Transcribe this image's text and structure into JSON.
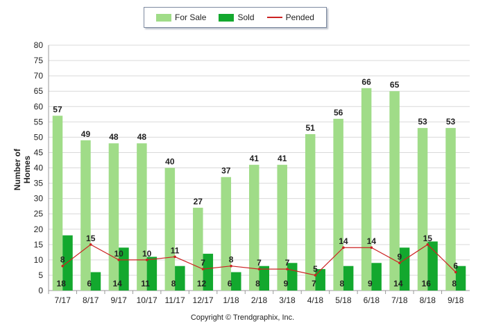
{
  "chart_data": {
    "type": "bar",
    "categories": [
      "7/17",
      "8/17",
      "9/17",
      "10/17",
      "11/17",
      "12/17",
      "1/18",
      "2/18",
      "3/18",
      "4/18",
      "5/18",
      "6/18",
      "7/18",
      "8/18",
      "9/18"
    ],
    "series": [
      {
        "name": "For Sale",
        "type": "bar",
        "color": "#a0dc88",
        "values": [
          57,
          49,
          48,
          48,
          40,
          27,
          37,
          41,
          41,
          51,
          56,
          66,
          65,
          53,
          53
        ]
      },
      {
        "name": "Sold",
        "type": "bar",
        "color": "#13a82e",
        "values": [
          18,
          6,
          14,
          11,
          8,
          12,
          6,
          8,
          9,
          7,
          8,
          9,
          14,
          16,
          8
        ]
      },
      {
        "name": "Pended",
        "type": "line",
        "color": "#cc2222",
        "values": [
          8,
          15,
          10,
          10,
          11,
          7,
          8,
          7,
          7,
          5,
          14,
          14,
          9,
          15,
          6
        ]
      }
    ],
    "xlabel": "",
    "ylabel": "Number of Homes",
    "ylim": [
      0,
      80
    ],
    "yticks": [
      0,
      5,
      10,
      15,
      20,
      25,
      30,
      35,
      40,
      45,
      50,
      55,
      60,
      65,
      70,
      75,
      80
    ],
    "grid": true,
    "legend_position": "top-center"
  },
  "footer": {
    "copyright": "Copyright © Trendgraphix, Inc."
  }
}
